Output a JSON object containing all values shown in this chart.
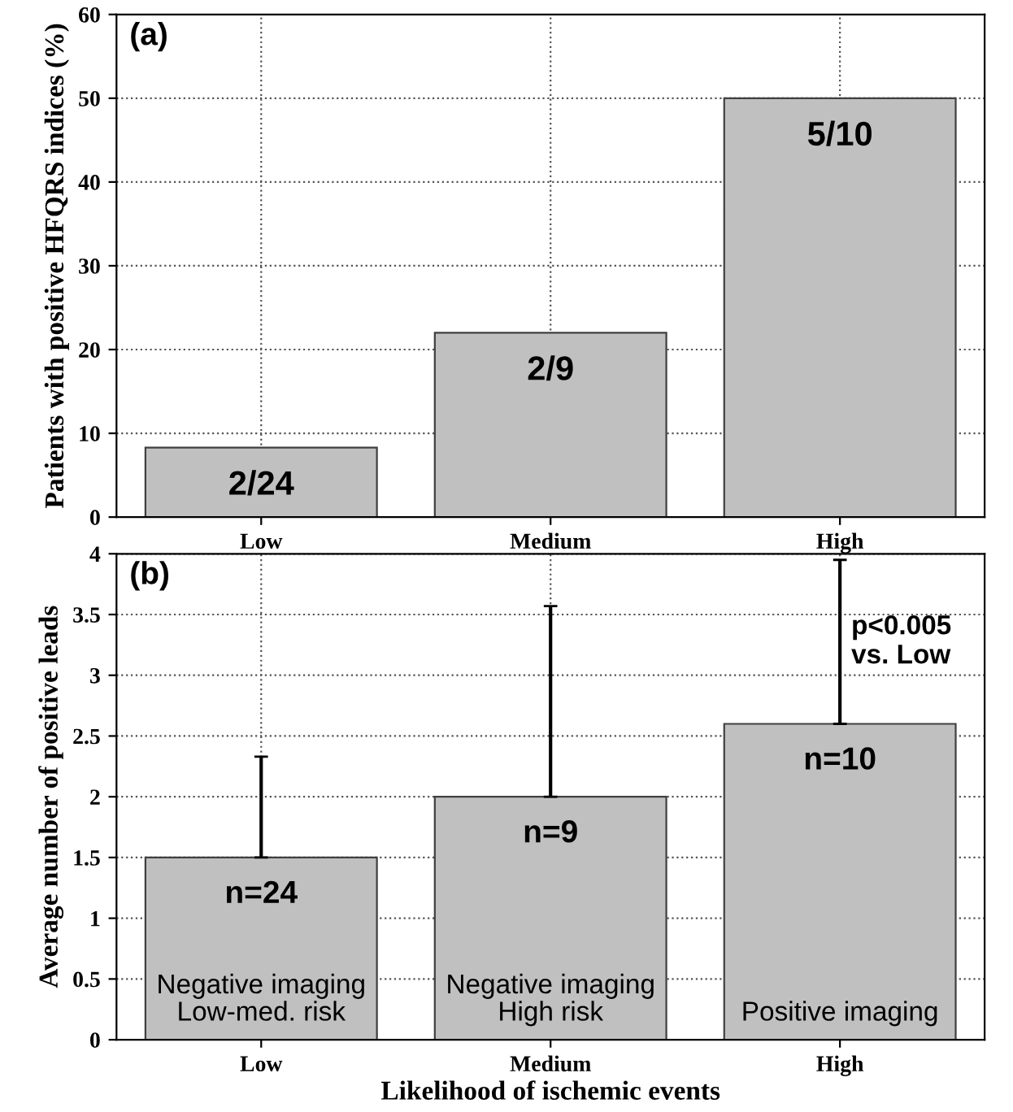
{
  "chart_data": [
    {
      "type": "bar",
      "title": "(a)",
      "ylabel": "Patients with positive HFQRS indices (%)",
      "categories": [
        "Low",
        "Medium",
        "High"
      ],
      "values": [
        8.3,
        22,
        50
      ],
      "color": "#c0c0c0",
      "annotations": [
        "2/24",
        "2/9",
        "5/10"
      ],
      "ylim": [
        0,
        60
      ],
      "yticks": [
        0,
        10,
        20,
        30,
        40,
        50,
        60
      ],
      "grid": true,
      "legend": false
    },
    {
      "type": "bar",
      "title": "(b)",
      "ylabel": "Average number of positive leads",
      "xlabel": "Likelihood of ischemic events",
      "categories": [
        "Low",
        "Medium",
        "High"
      ],
      "values": [
        1.5,
        2.0,
        2.6
      ],
      "errors": [
        [
          1.5,
          2.33
        ],
        [
          2.0,
          3.57
        ],
        [
          2.6,
          3.95
        ]
      ],
      "color": "#c0c0c0",
      "ylim": [
        0,
        4
      ],
      "yticks": [
        0,
        0.5,
        1,
        1.5,
        2,
        2.5,
        3,
        3.5,
        4
      ],
      "grid": true,
      "legend": false,
      "annotations": [
        "n=24",
        "Negative imaging\nLow-med. risk",
        "n=9",
        "Negative imaging\nHigh risk",
        "n=10",
        "Positive imaging",
        "p<0.005\nvs. Low"
      ]
    }
  ]
}
